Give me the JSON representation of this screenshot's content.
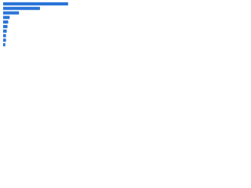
{
  "chart_data": {
    "type": "bar",
    "orientation": "horizontal",
    "categories": [
      null,
      null,
      null,
      null,
      null,
      null,
      null,
      null,
      null,
      null
    ],
    "values": [
      90,
      51,
      22,
      9,
      7,
      6,
      5,
      4,
      4,
      3
    ],
    "color": "#2a74d8",
    "xlim": [
      0,
      100
    ]
  }
}
